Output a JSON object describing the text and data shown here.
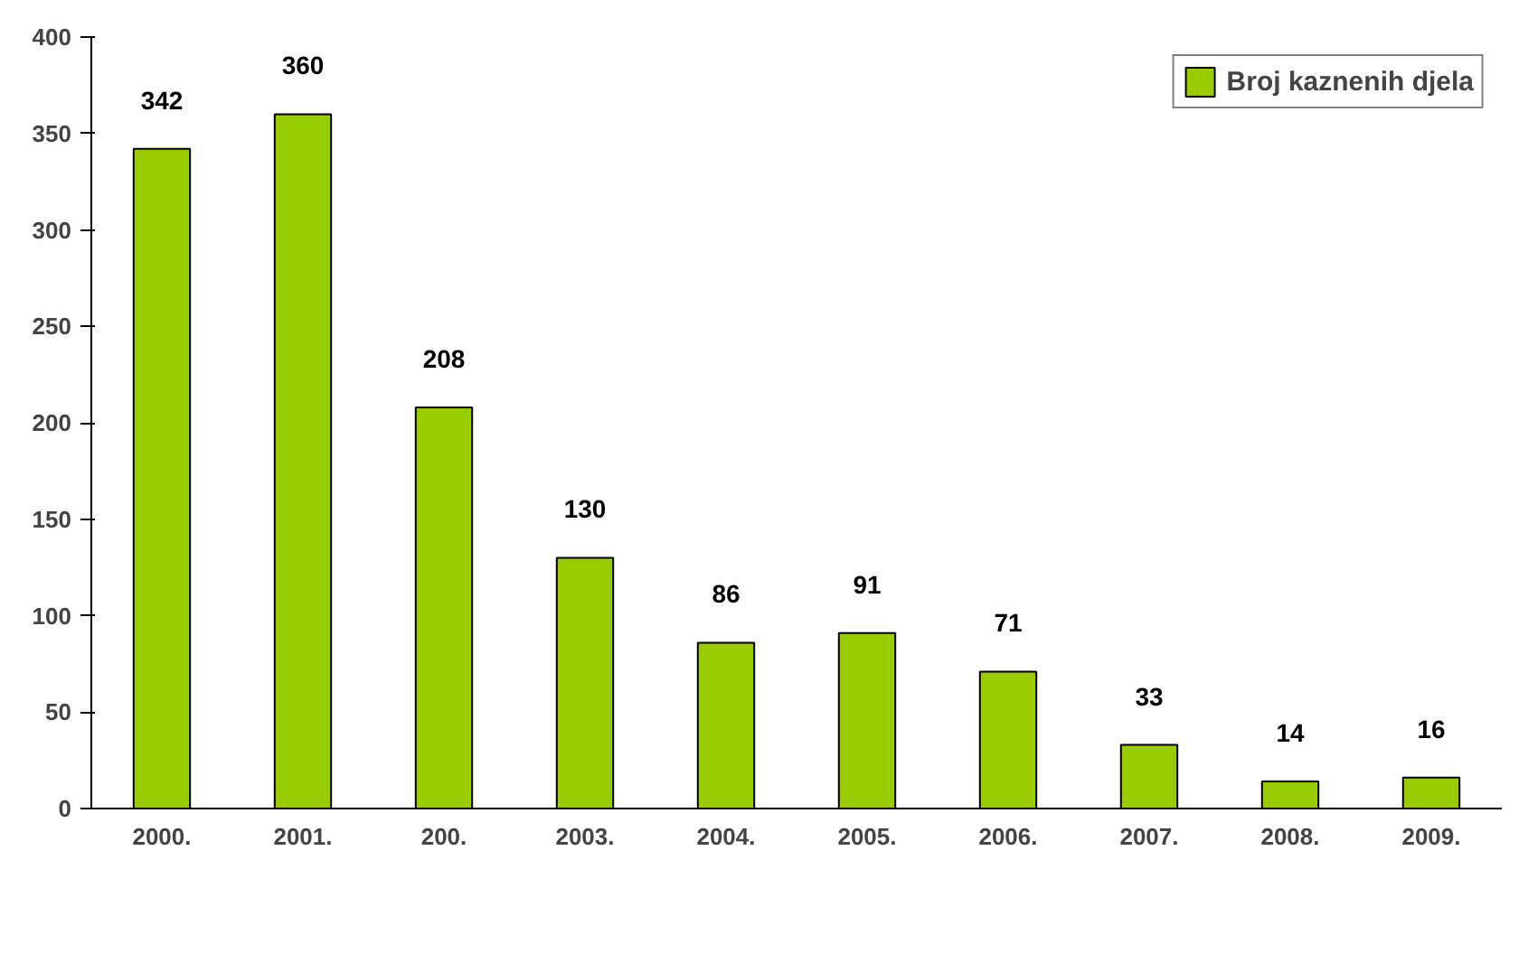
{
  "chart_data": {
    "type": "bar",
    "categories": [
      "2000.",
      "2001.",
      "200.",
      "2003.",
      "2004.",
      "2005.",
      "2006.",
      "2007.",
      "2008.",
      "2009."
    ],
    "series": [
      {
        "name": "Broj kaznenih djela",
        "color": "#99cc00",
        "values": [
          342,
          360,
          208,
          130,
          86,
          91,
          71,
          33,
          14,
          16
        ]
      }
    ],
    "ylim": [
      0,
      400
    ],
    "yticks": [
      0,
      50,
      100,
      150,
      200,
      250,
      300,
      350,
      400
    ],
    "data_labels": true,
    "grid": false,
    "legend": "top right"
  }
}
